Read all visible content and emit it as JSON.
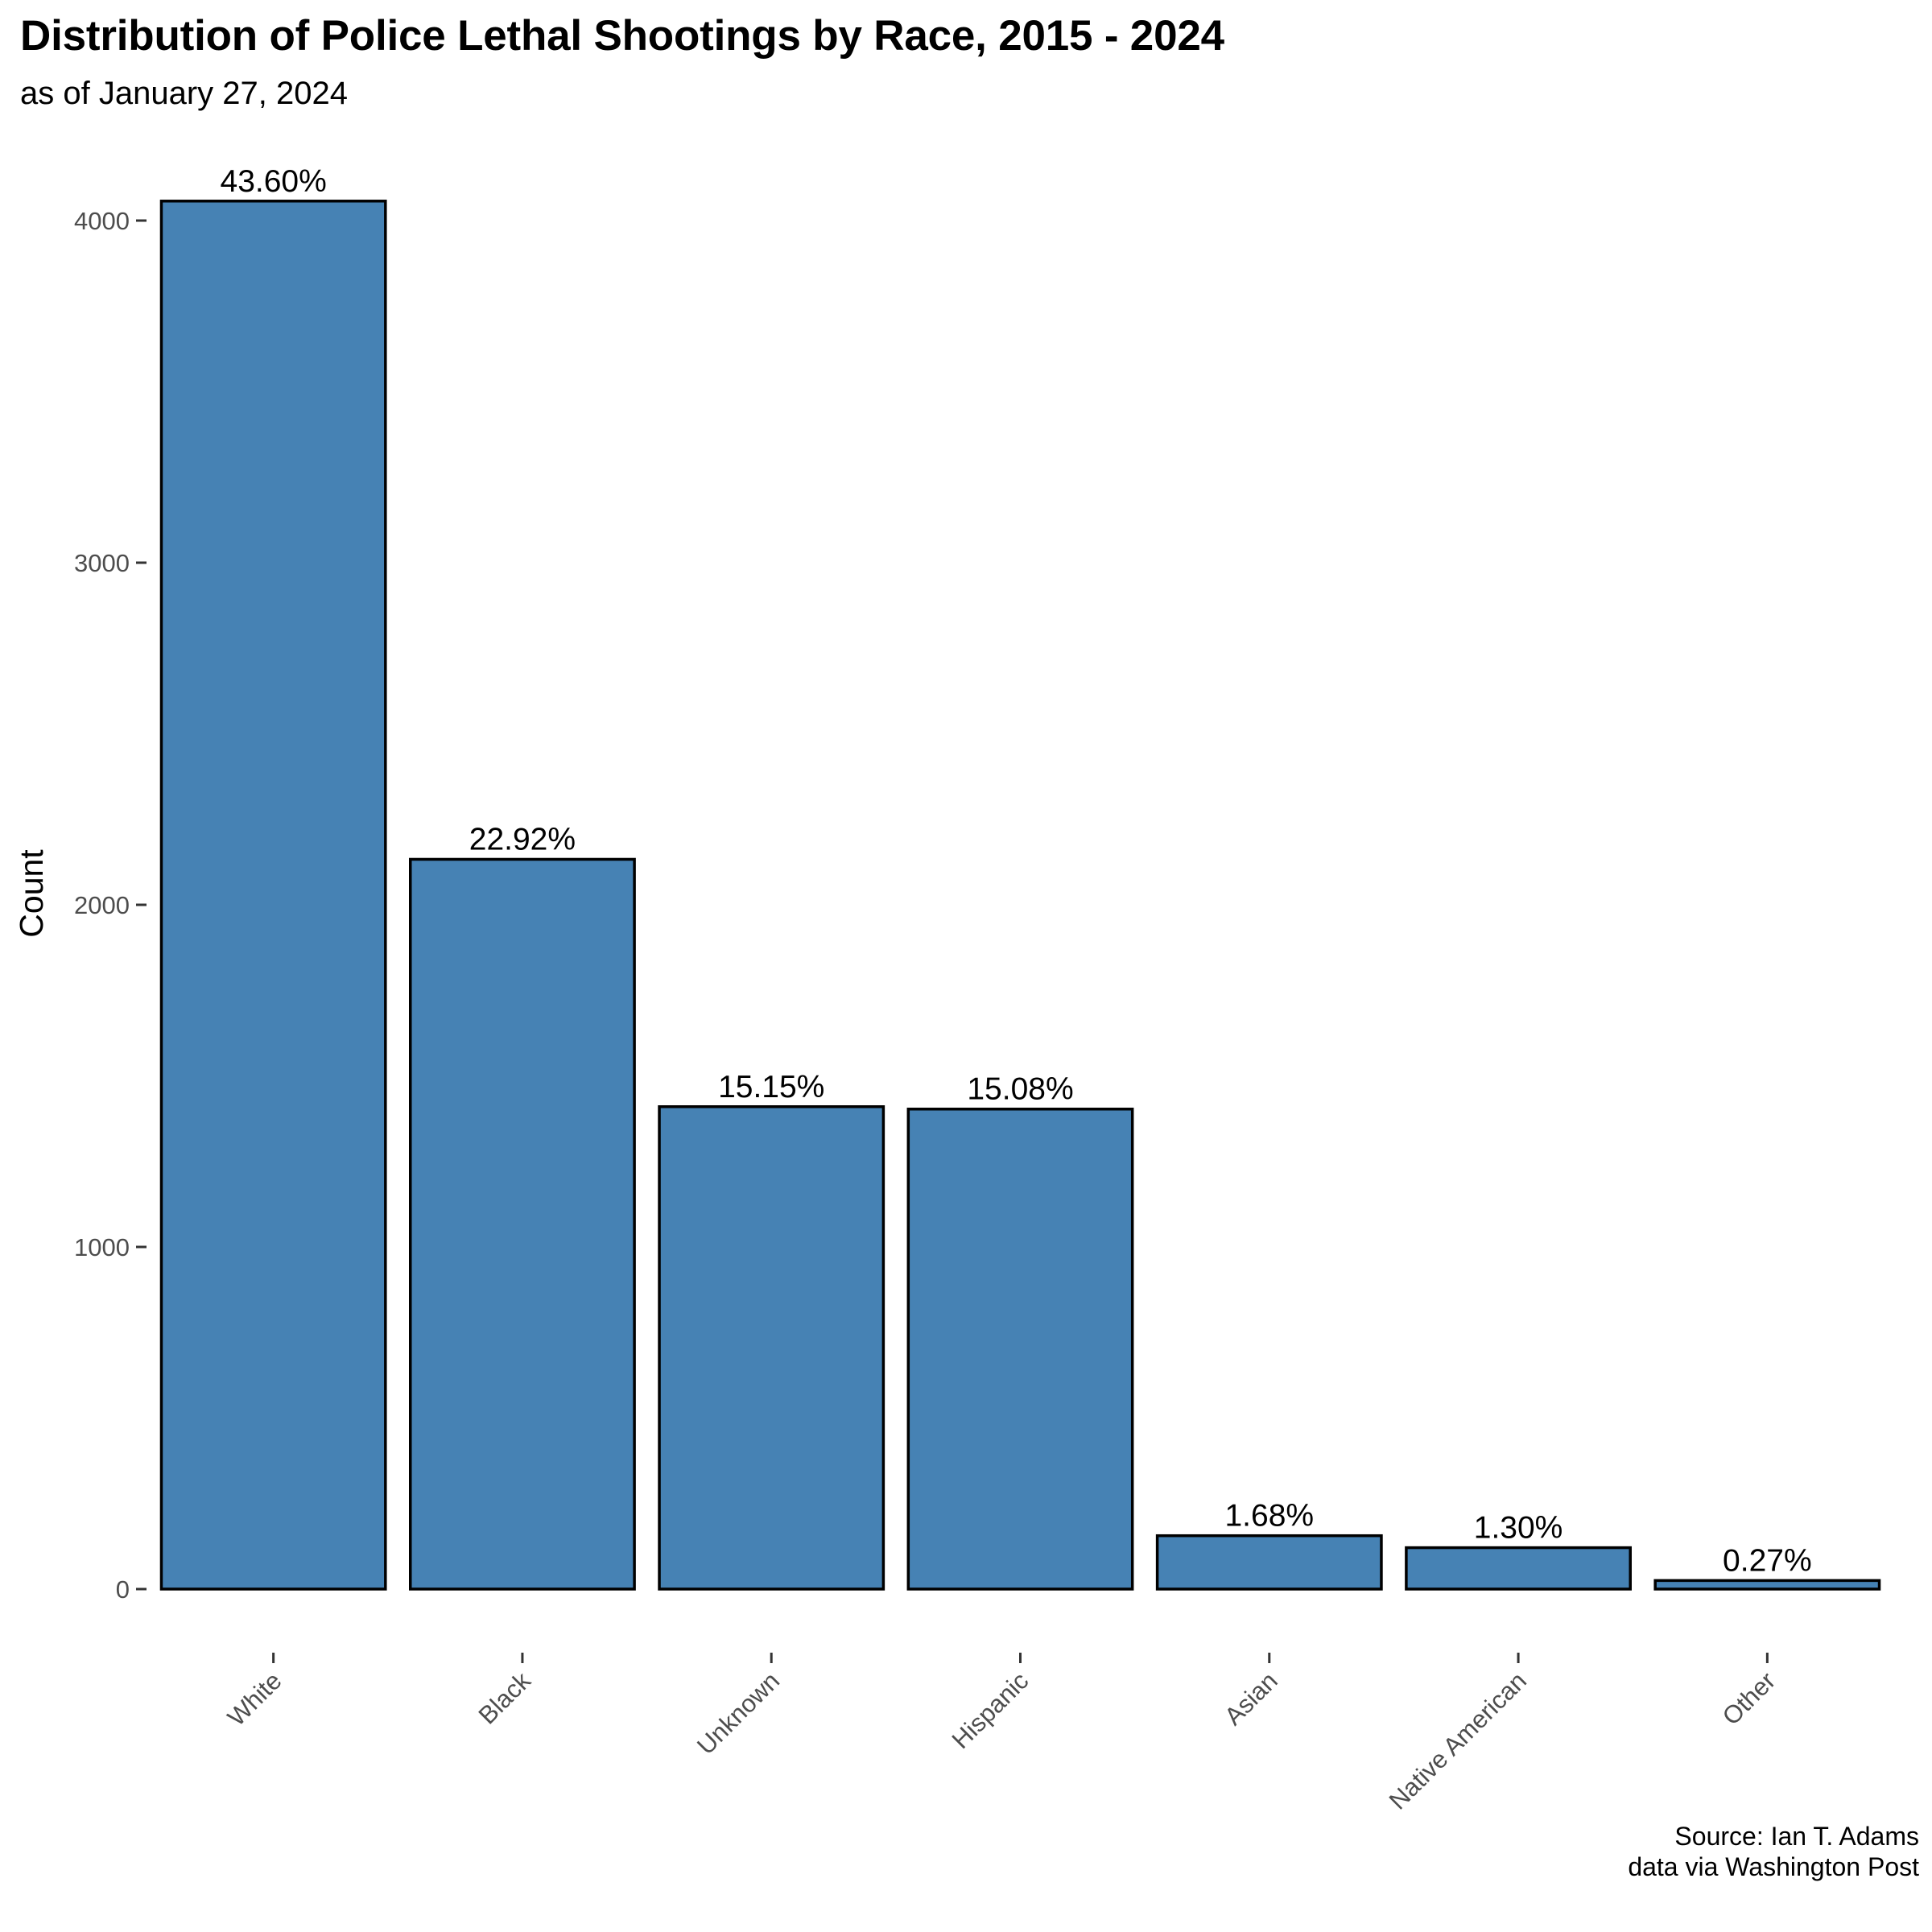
{
  "chart_data": {
    "type": "bar",
    "title": "Distribution of Police Lethal Shootings by Race, 2015 - 2024",
    "subtitle": "as of January 27, 2024",
    "xlabel": "",
    "ylabel": "Count",
    "categories": [
      "White",
      "Black",
      "Unknown",
      "Hispanic",
      "Asian",
      "Native American",
      "Other"
    ],
    "values": [
      4057,
      2133,
      1410,
      1403,
      156,
      121,
      25
    ],
    "data_labels": [
      "43.60%",
      "22.92%",
      "15.15%",
      "15.08%",
      "1.68%",
      "1.30%",
      "0.27%"
    ],
    "y_ticks": [
      0,
      1000,
      2000,
      3000,
      4000
    ],
    "y_tick_labels": [
      "0",
      "1000",
      "2000",
      "3000",
      "4000"
    ],
    "ylim": [
      -180,
      4260
    ],
    "bar_color": "#4682B4",
    "bar_outline_color": "#000000",
    "grid": false,
    "legend": "none"
  },
  "caption": {
    "line1": "Source: Ian T. Adams",
    "line2": "data via Washington Post"
  }
}
